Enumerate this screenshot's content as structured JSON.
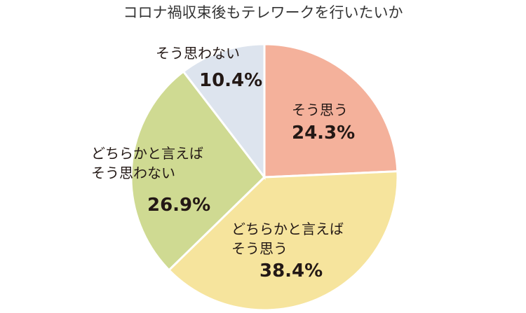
{
  "chart_data": {
    "type": "pie",
    "title": "コロナ禍収束後もテレワークを行いたいか",
    "categories": [
      "そう思う",
      "どちらかと言えば\nそう思う",
      "どちらかと言えば\nそう思わない",
      "そう思わない"
    ],
    "values": [
      24.3,
      38.4,
      26.9,
      10.4
    ],
    "value_labels": [
      "24.3%",
      "38.4%",
      "26.9%",
      "10.4%"
    ],
    "colors": [
      "#f4b19b",
      "#f6e49d",
      "#cfda92",
      "#dde4ee"
    ]
  }
}
